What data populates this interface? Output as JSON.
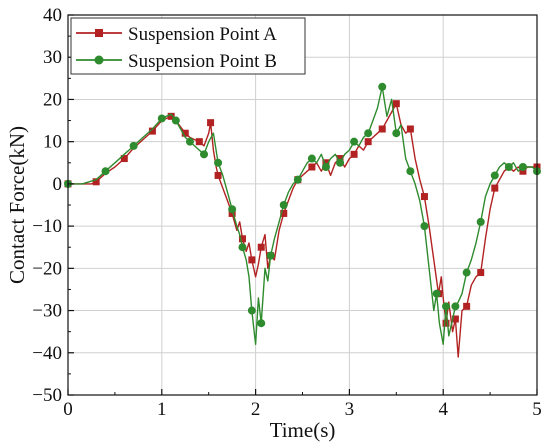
{
  "chart_data": {
    "type": "line",
    "xlabel": "Time(s)",
    "ylabel": "Contact Force(kN)",
    "xlim": [
      0,
      5
    ],
    "ylim": [
      -50,
      40
    ],
    "x_ticks": [
      "0",
      "1",
      "2",
      "3",
      "4",
      "5"
    ],
    "y_ticks": [
      "−50",
      "−40",
      "−30",
      "−20",
      "−10",
      "0",
      "10",
      "20",
      "30",
      "40"
    ],
    "grid": true,
    "legend_position": "top-left",
    "series": [
      {
        "name": "Suspension Point A",
        "color": "#b22222",
        "marker": "square",
        "x": [
          0.0,
          0.15,
          0.25,
          0.3,
          0.4,
          0.5,
          0.6,
          0.7,
          0.8,
          0.9,
          1.0,
          1.05,
          1.1,
          1.15,
          1.2,
          1.25,
          1.3,
          1.35,
          1.4,
          1.45,
          1.5,
          1.52,
          1.55,
          1.58,
          1.6,
          1.65,
          1.7,
          1.75,
          1.8,
          1.83,
          1.86,
          1.9,
          1.93,
          1.96,
          2.0,
          2.03,
          2.06,
          2.1,
          2.13,
          2.16,
          2.2,
          2.25,
          2.3,
          2.35,
          2.4,
          2.45,
          2.5,
          2.55,
          2.6,
          2.65,
          2.7,
          2.75,
          2.8,
          2.85,
          2.9,
          2.95,
          3.0,
          3.05,
          3.1,
          3.15,
          3.2,
          3.25,
          3.3,
          3.35,
          3.4,
          3.45,
          3.5,
          3.55,
          3.6,
          3.65,
          3.7,
          3.75,
          3.8,
          3.85,
          3.9,
          3.95,
          3.98,
          4.0,
          4.03,
          4.06,
          4.1,
          4.13,
          4.16,
          4.2,
          4.25,
          4.3,
          4.35,
          4.4,
          4.45,
          4.5,
          4.55,
          4.6,
          4.65,
          4.7,
          4.75,
          4.8,
          4.85,
          4.9,
          4.95,
          5.0
        ],
        "y": [
          0,
          0,
          0,
          0.5,
          2.5,
          4,
          6,
          8.5,
          10.5,
          12.5,
          15,
          15.5,
          16,
          15,
          13.5,
          12,
          11,
          10.5,
          10,
          9,
          12,
          14.5,
          8,
          4,
          2,
          -1,
          -4,
          -7,
          -11,
          -9,
          -13,
          -16,
          -14,
          -18,
          -22,
          -19,
          -15,
          -12,
          -20,
          -17,
          -18,
          -11,
          -7,
          -4,
          -1,
          1,
          2,
          3,
          4,
          5,
          3,
          5,
          2,
          5,
          6,
          4,
          6,
          7,
          9,
          8,
          10,
          11,
          12,
          13,
          15,
          17,
          19,
          14,
          12,
          13,
          6,
          1,
          -3,
          -10,
          -18,
          -26,
          -22,
          -27,
          -33,
          -28,
          -35,
          -32,
          -41,
          -30,
          -29,
          -24,
          -22,
          -21,
          -13,
          -6,
          -1,
          1,
          3,
          4,
          3,
          4,
          3,
          4,
          4,
          4
        ]
      },
      {
        "name": "Suspension Point B",
        "color": "#2e8b2e",
        "marker": "circle",
        "x": [
          0.0,
          0.15,
          0.3,
          0.4,
          0.5,
          0.6,
          0.7,
          0.8,
          0.9,
          1.0,
          1.05,
          1.1,
          1.15,
          1.2,
          1.25,
          1.3,
          1.35,
          1.4,
          1.45,
          1.5,
          1.55,
          1.6,
          1.65,
          1.7,
          1.75,
          1.8,
          1.83,
          1.86,
          1.9,
          1.93,
          1.96,
          2.0,
          2.03,
          2.06,
          2.1,
          2.13,
          2.16,
          2.2,
          2.25,
          2.3,
          2.35,
          2.4,
          2.45,
          2.5,
          2.55,
          2.6,
          2.65,
          2.7,
          2.75,
          2.8,
          2.85,
          2.9,
          2.95,
          3.0,
          3.05,
          3.1,
          3.15,
          3.2,
          3.25,
          3.3,
          3.35,
          3.4,
          3.45,
          3.5,
          3.55,
          3.6,
          3.65,
          3.7,
          3.75,
          3.8,
          3.85,
          3.9,
          3.93,
          3.96,
          4.0,
          4.03,
          4.06,
          4.1,
          4.13,
          4.16,
          4.2,
          4.25,
          4.3,
          4.35,
          4.4,
          4.45,
          4.5,
          4.55,
          4.6,
          4.65,
          4.7,
          4.75,
          4.8,
          4.85,
          4.9,
          4.95,
          5.0
        ],
        "y": [
          0,
          0,
          1,
          3,
          5,
          7,
          9,
          11,
          13,
          15.5,
          16,
          16.5,
          15,
          13,
          11,
          10,
          9,
          8,
          7,
          10,
          12,
          5,
          2,
          -2,
          -6,
          -10,
          -12,
          -15,
          -18,
          -22,
          -30,
          -38,
          -27,
          -33,
          -20,
          -23,
          -17,
          -13,
          -9,
          -5,
          -2,
          0,
          1,
          3,
          5,
          6,
          5,
          7,
          4,
          6,
          7,
          5,
          7,
          8,
          10,
          9,
          11,
          12,
          15,
          18,
          23,
          16,
          20,
          12,
          14,
          6,
          3,
          0,
          -4,
          -10,
          -20,
          -30,
          -26,
          -33,
          -38,
          -29,
          -36,
          -32,
          -29,
          -28,
          -26,
          -21,
          -18,
          -14,
          -9,
          -3,
          0,
          2,
          4,
          5,
          4,
          5,
          3,
          4,
          4,
          4,
          3
        ]
      }
    ]
  }
}
